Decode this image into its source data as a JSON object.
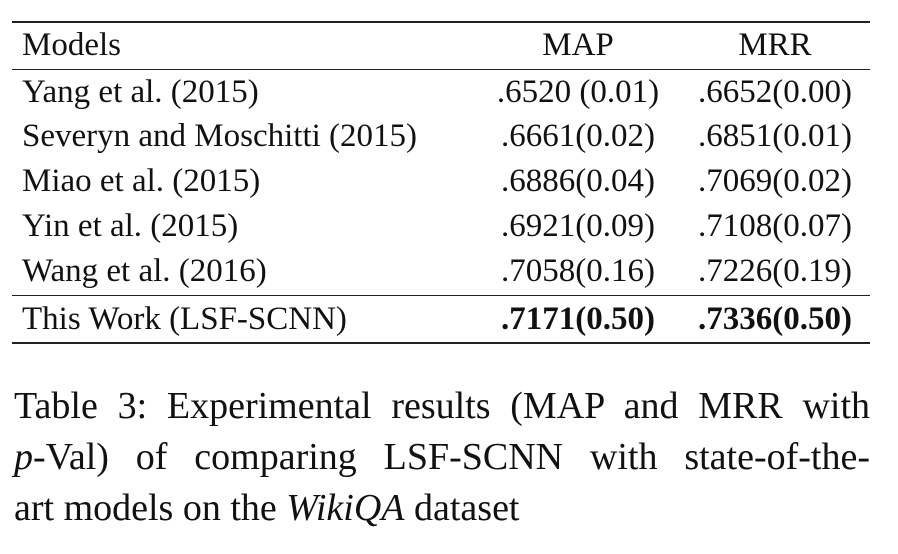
{
  "table": {
    "header": [
      "Models",
      "MAP",
      "MRR"
    ],
    "rows": [
      [
        "Yang et al. (2015)",
        ".6520 (0.01)",
        ".6652(0.00)"
      ],
      [
        "Severyn and Moschitti (2015)",
        ".6661(0.02)",
        ".6851(0.01)"
      ],
      [
        "Miao et al. (2015)",
        ".6886(0.04)",
        ".7069(0.02)"
      ],
      [
        "Yin et al. (2015)",
        ".6921(0.09)",
        ".7108(0.07)"
      ],
      [
        "Wang et al. (2016)",
        ".7058(0.16)",
        ".7226(0.19)"
      ],
      [
        "This Work (LSF-SCNN)",
        ".7171(0.50)",
        ".7336(0.50)"
      ]
    ]
  },
  "caption": {
    "lines": [
      [
        "Table 3: Experimental results (MAP and MRR with"
      ],
      [
        "p",
        "-Val) of comparing LSF-SCNN with state-of-the-"
      ],
      [
        "art models on the ",
        "WikiQA",
        " dataset"
      ]
    ]
  }
}
